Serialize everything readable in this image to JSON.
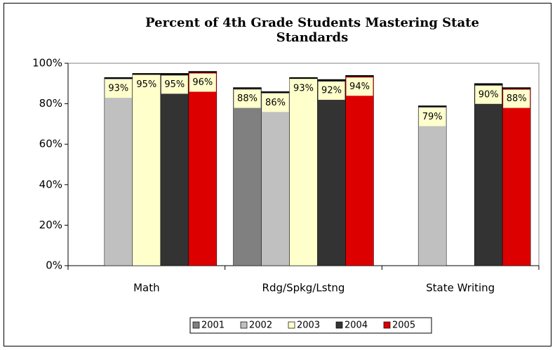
{
  "chart_data": {
    "type": "bar",
    "title": "Percent of 4th Grade Students Mastering State Standards",
    "categories": [
      "Math",
      "Rdg/Spkg/Lstng",
      "State Writing"
    ],
    "series": [
      {
        "name": "2001",
        "color": "#808080",
        "values": [
          null,
          88,
          null
        ],
        "value_labels": [
          null,
          "88%",
          null
        ]
      },
      {
        "name": "2002",
        "color": "#c0c0c0",
        "values": [
          93,
          86,
          79
        ],
        "value_labels": [
          "93%",
          "86%",
          "79%"
        ]
      },
      {
        "name": "2003",
        "color": "#ffffcc",
        "values": [
          95,
          93,
          null
        ],
        "value_labels": [
          "95%",
          "93%",
          null
        ]
      },
      {
        "name": "2004",
        "color": "#333333",
        "values": [
          95,
          92,
          90
        ],
        "value_labels": [
          "95%",
          "92%",
          "90%"
        ]
      },
      {
        "name": "2005",
        "color": "#dd0000",
        "values": [
          96,
          94,
          88
        ],
        "value_labels": [
          "96%",
          "94%",
          "88%"
        ]
      }
    ],
    "ylim": [
      0,
      100
    ],
    "yticks": [
      {
        "value": 0,
        "label": "0%"
      },
      {
        "value": 20,
        "label": "20%"
      },
      {
        "value": 40,
        "label": "40%"
      },
      {
        "value": 60,
        "label": "60%"
      },
      {
        "value": 80,
        "label": "80%"
      },
      {
        "value": 100,
        "label": "100%"
      }
    ],
    "grid": false,
    "legend": "bottom"
  }
}
